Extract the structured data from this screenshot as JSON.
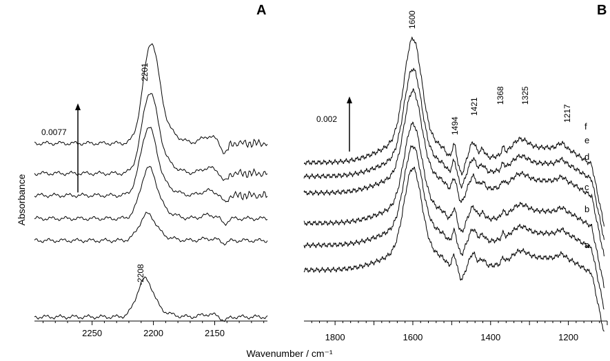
{
  "chart_data": [
    {
      "panel": "A",
      "type": "line",
      "xlabel": "Wavenumber / cm⁻¹",
      "ylabel": "Absorbance",
      "xlim": [
        2297,
        2107
      ],
      "x_reversed": true,
      "x_ticks": [
        2250,
        2200,
        2150
      ],
      "scale_bar": {
        "label": "0.0077",
        "value": 0.0077
      },
      "annotations": [
        {
          "text": "2201",
          "x": 2201
        },
        {
          "text": "-2208",
          "x": 2208
        }
      ],
      "series": [
        {
          "baseline": 0.0,
          "peak_x": 2207,
          "peak_height": 0.0033
        },
        {
          "baseline": 0.0066,
          "peak_x": 2205,
          "peak_height": 0.0023
        },
        {
          "baseline": 0.0085,
          "peak_x": 2204,
          "peak_height": 0.0044
        },
        {
          "baseline": 0.0105,
          "peak_x": 2204,
          "peak_height": 0.0059
        },
        {
          "baseline": 0.0124,
          "peak_x": 2203,
          "peak_height": 0.007
        },
        {
          "baseline": 0.015,
          "peak_x": 2202,
          "peak_height": 0.0087
        }
      ]
    },
    {
      "panel": "B",
      "type": "line",
      "xlabel": "Wavenumber / cm⁻¹",
      "xlim": [
        1880,
        1100
      ],
      "x_reversed": true,
      "x_ticks": [
        1800,
        1600,
        1400,
        1200
      ],
      "scale_bar": {
        "label": "0.002",
        "value": 0.002
      },
      "annotations": [
        {
          "text": "1600",
          "x": 1600
        },
        {
          "text": "1494",
          "x": 1494
        },
        {
          "text": "1421",
          "x": 1421
        },
        {
          "text": "1368",
          "x": 1368
        },
        {
          "text": "1325",
          "x": 1325
        },
        {
          "text": "1217",
          "x": 1217
        }
      ],
      "series": [
        {
          "name": "a",
          "baseline": 0.0,
          "main_peak": 0.0037
        },
        {
          "name": "b",
          "baseline": 0.0009,
          "main_peak": 0.0036
        },
        {
          "name": "c",
          "baseline": 0.0017,
          "main_peak": 0.0036
        },
        {
          "name": "d",
          "baseline": 0.0028,
          "main_peak": 0.0037
        },
        {
          "name": "e",
          "baseline": 0.0034,
          "main_peak": 0.0039
        },
        {
          "name": "f",
          "baseline": 0.0039,
          "main_peak": 0.0045
        }
      ]
    }
  ],
  "ui": {
    "panel_a_letter": "A",
    "panel_b_letter": "B",
    "ylabel": "Absorbance",
    "xlabel": "Wavenumber / cm⁻¹",
    "scale_a": "0.0077",
    "scale_b": "0.002"
  }
}
